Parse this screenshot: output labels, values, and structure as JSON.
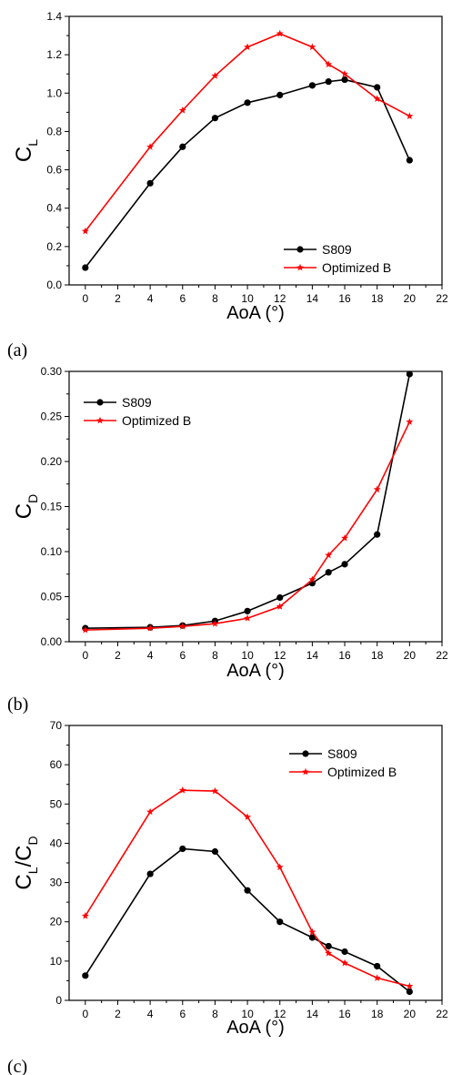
{
  "chart_data": [
    {
      "type": "line",
      "panel_label": "(a)",
      "xlabel": "AoA (°)",
      "ylabel": {
        "main": "C",
        "sub": "L",
        "sep": "",
        "main2": "",
        "sub2": ""
      },
      "xlim": [
        -1,
        22
      ],
      "ylim": [
        0,
        1.4
      ],
      "xticks": [
        "0",
        "2",
        "4",
        "6",
        "8",
        "10",
        "12",
        "14",
        "16",
        "18",
        "20",
        "22"
      ],
      "yticks": [
        "0.0",
        "0.2",
        "0.4",
        "0.6",
        "0.8",
        "1.0",
        "1.2",
        "1.4"
      ],
      "legend_position": "bottom-right",
      "series": [
        {
          "name": "S809",
          "color": "#000000",
          "marker": "circle",
          "x": [
            0,
            4,
            6,
            8,
            10,
            12,
            14,
            15,
            16,
            18,
            20
          ],
          "y": [
            0.09,
            0.53,
            0.72,
            0.87,
            0.95,
            0.99,
            1.04,
            1.06,
            1.07,
            1.03,
            0.65
          ]
        },
        {
          "name": "Optimized B",
          "color": "#ff0000",
          "marker": "star",
          "x": [
            0,
            4,
            6,
            8,
            10,
            12,
            14,
            15,
            16,
            18,
            20
          ],
          "y": [
            0.28,
            0.72,
            0.91,
            1.09,
            1.24,
            1.31,
            1.24,
            1.15,
            1.1,
            0.97,
            0.88
          ]
        }
      ]
    },
    {
      "type": "line",
      "panel_label": "(b)",
      "xlabel": "AoA (°)",
      "ylabel": {
        "main": "C",
        "sub": "D",
        "sep": "",
        "main2": "",
        "sub2": ""
      },
      "xlim": [
        -1,
        22
      ],
      "ylim": [
        0,
        0.3
      ],
      "xticks": [
        "0",
        "2",
        "4",
        "6",
        "8",
        "10",
        "12",
        "14",
        "16",
        "18",
        "20",
        "22"
      ],
      "yticks": [
        "0.00",
        "0.05",
        "0.10",
        "0.15",
        "0.20",
        "0.25",
        "0.30"
      ],
      "legend_position": "top-left",
      "series": [
        {
          "name": "S809",
          "color": "#000000",
          "marker": "circle",
          "x": [
            0,
            4,
            6,
            8,
            10,
            12,
            14,
            15,
            16,
            18,
            20
          ],
          "y": [
            0.015,
            0.016,
            0.018,
            0.023,
            0.034,
            0.049,
            0.065,
            0.077,
            0.086,
            0.119,
            0.297
          ]
        },
        {
          "name": "Optimized B",
          "color": "#ff0000",
          "marker": "star",
          "x": [
            0,
            4,
            6,
            8,
            10,
            12,
            14,
            15,
            16,
            18,
            20
          ],
          "y": [
            0.013,
            0.015,
            0.017,
            0.02,
            0.026,
            0.039,
            0.069,
            0.096,
            0.115,
            0.169,
            0.244
          ]
        }
      ]
    },
    {
      "type": "line",
      "panel_label": "(c)",
      "xlabel": "AoA (°)",
      "ylabel": {
        "main": "C",
        "sub": "L",
        "sep": "/",
        "main2": "C",
        "sub2": "D"
      },
      "xlim": [
        -1,
        22
      ],
      "ylim": [
        0,
        70
      ],
      "xticks": [
        "0",
        "2",
        "4",
        "6",
        "8",
        "10",
        "12",
        "14",
        "16",
        "18",
        "20",
        "22"
      ],
      "yticks": [
        "0",
        "10",
        "20",
        "30",
        "40",
        "50",
        "60",
        "70"
      ],
      "legend_position": "top-right",
      "series": [
        {
          "name": "S809",
          "color": "#000000",
          "marker": "circle",
          "x": [
            0,
            4,
            6,
            8,
            10,
            12,
            14,
            15,
            16,
            18,
            20
          ],
          "y": [
            6.3,
            32.2,
            38.6,
            37.9,
            28.0,
            20.0,
            16.0,
            13.8,
            12.4,
            8.7,
            2.2
          ]
        },
        {
          "name": "Optimized B",
          "color": "#ff0000",
          "marker": "star",
          "x": [
            0,
            4,
            6,
            8,
            10,
            12,
            14,
            15,
            16,
            18,
            20
          ],
          "y": [
            21.5,
            48.0,
            53.5,
            53.3,
            46.7,
            33.9,
            17.4,
            12.0,
            9.5,
            5.7,
            3.6
          ]
        }
      ]
    }
  ]
}
